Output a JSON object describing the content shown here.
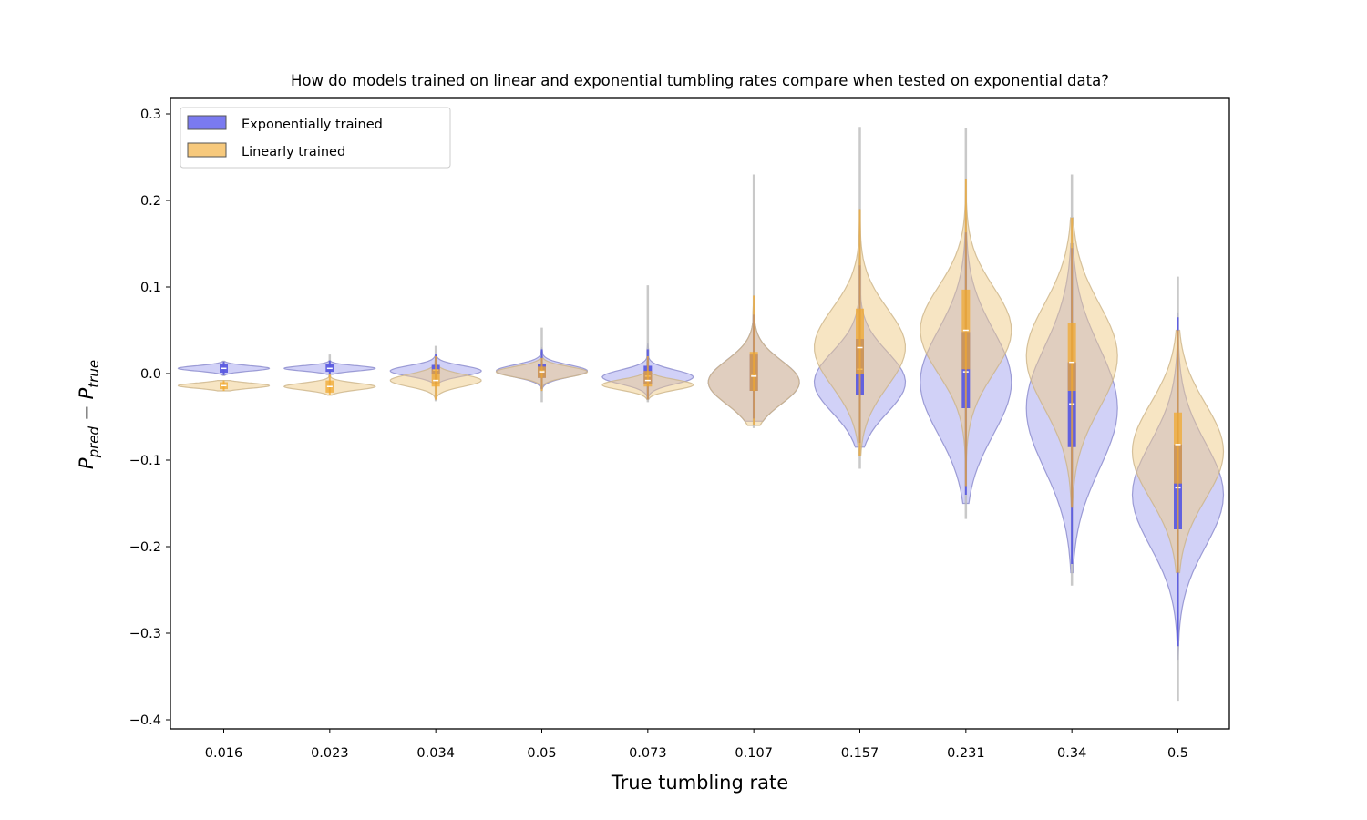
{
  "chart_data": {
    "type": "violin",
    "title": "How do models trained on linear and exponential tumbling rates compare when tested on exponential data?",
    "xlabel": "True tumbling rate",
    "ylabel_main": "P",
    "ylabel_sub1": "pred",
    "ylabel_minus": "−",
    "ylabel_sub2": "true",
    "ylim": [
      -0.41,
      0.32
    ],
    "yticks": [
      -0.4,
      -0.3,
      -0.2,
      -0.1,
      0.0,
      0.1,
      0.2,
      0.3
    ],
    "ytick_labels": [
      "−0.4",
      "−0.3",
      "−0.2",
      "−0.1",
      "0.0",
      "0.1",
      "0.2",
      "0.3"
    ],
    "categories": [
      "0.016",
      "0.023",
      "0.034",
      "0.05",
      "0.073",
      "0.107",
      "0.157",
      "0.231",
      "0.34",
      "0.5"
    ],
    "legend_position": "top-left",
    "series": [
      {
        "name": "Exponentially trained",
        "color": "#7a7af0",
        "fill": "#9999ee",
        "inner": "#5b5be0",
        "q1": [
          0.001,
          0.002,
          0.0,
          -0.005,
          -0.012,
          -0.02,
          -0.025,
          -0.04,
          -0.085,
          -0.18
        ],
        "median": [
          0.006,
          0.006,
          0.004,
          0.003,
          -0.003,
          -0.001,
          0.005,
          0.002,
          -0.035,
          -0.132
        ],
        "q3": [
          0.011,
          0.011,
          0.01,
          0.011,
          0.009,
          0.022,
          0.04,
          0.048,
          0.013,
          -0.082
        ],
        "wmin": [
          -0.002,
          -0.001,
          -0.012,
          -0.018,
          -0.03,
          -0.052,
          -0.08,
          -0.14,
          -0.22,
          -0.315
        ],
        "wmax": [
          0.014,
          0.015,
          0.022,
          0.028,
          0.028,
          0.068,
          0.125,
          0.163,
          0.145,
          0.065
        ],
        "vmin": [
          -0.002,
          -0.001,
          -0.012,
          -0.02,
          -0.03,
          -0.055,
          -0.085,
          -0.15,
          -0.23,
          -0.33
        ],
        "vmax": [
          0.014,
          0.015,
          0.022,
          0.03,
          0.035,
          0.08,
          0.15,
          0.18,
          0.15,
          0.07
        ],
        "vmode": [
          0.006,
          0.006,
          0.003,
          0.003,
          -0.004,
          -0.01,
          -0.01,
          -0.01,
          -0.04,
          -0.14
        ],
        "vhalfw": [
          0.05,
          0.05,
          0.05,
          0.05,
          0.05,
          0.052,
          0.052,
          0.052,
          0.052,
          0.052
        ],
        "vspread": [
          0.003,
          0.003,
          0.006,
          0.007,
          0.008,
          0.025,
          0.035,
          0.06,
          0.07,
          0.06
        ]
      },
      {
        "name": "Linearly trained",
        "color": "#f5b342",
        "fill": "#f0cc88",
        "inner": "#f0a830",
        "q1": [
          -0.018,
          -0.022,
          -0.015,
          -0.005,
          -0.015,
          -0.02,
          0.0,
          0.005,
          -0.02,
          -0.127
        ],
        "median": [
          -0.014,
          -0.015,
          -0.008,
          0.002,
          -0.008,
          -0.003,
          0.03,
          0.05,
          0.013,
          -0.082
        ],
        "q3": [
          -0.01,
          -0.008,
          0.005,
          0.008,
          0.003,
          0.025,
          0.075,
          0.097,
          0.058,
          -0.045
        ],
        "wmin": [
          -0.02,
          -0.025,
          -0.03,
          -0.02,
          -0.03,
          -0.06,
          -0.095,
          -0.13,
          -0.155,
          -0.23
        ],
        "wmax": [
          -0.008,
          0.0,
          0.02,
          0.018,
          0.02,
          0.09,
          0.19,
          0.225,
          0.18,
          0.05
        ],
        "vmin": [
          -0.02,
          -0.025,
          -0.03,
          -0.02,
          -0.03,
          -0.06,
          -0.095,
          -0.13,
          -0.155,
          -0.23
        ],
        "vmax": [
          -0.008,
          0.0,
          0.02,
          0.02,
          0.02,
          0.09,
          0.19,
          0.225,
          0.18,
          0.05
        ],
        "vmode": [
          -0.014,
          -0.015,
          -0.008,
          0.002,
          -0.013,
          -0.01,
          0.03,
          0.05,
          0.02,
          -0.09
        ],
        "vhalfw": [
          0.05,
          0.05,
          0.05,
          0.05,
          0.05,
          0.05,
          0.05,
          0.05,
          0.05,
          0.052
        ],
        "vspread": [
          0.003,
          0.004,
          0.007,
          0.006,
          0.006,
          0.025,
          0.045,
          0.05,
          0.06,
          0.055
        ]
      }
    ],
    "outer_whisker": {
      "color": "#bbbbbb",
      "min": [
        -0.003,
        -0.004,
        -0.032,
        -0.033,
        -0.033,
        -0.063,
        -0.11,
        -0.168,
        -0.245,
        -0.378
      ],
      "max": [
        0.015,
        0.022,
        0.032,
        0.053,
        0.102,
        0.23,
        0.285,
        0.284,
        0.23,
        0.112
      ]
    }
  }
}
